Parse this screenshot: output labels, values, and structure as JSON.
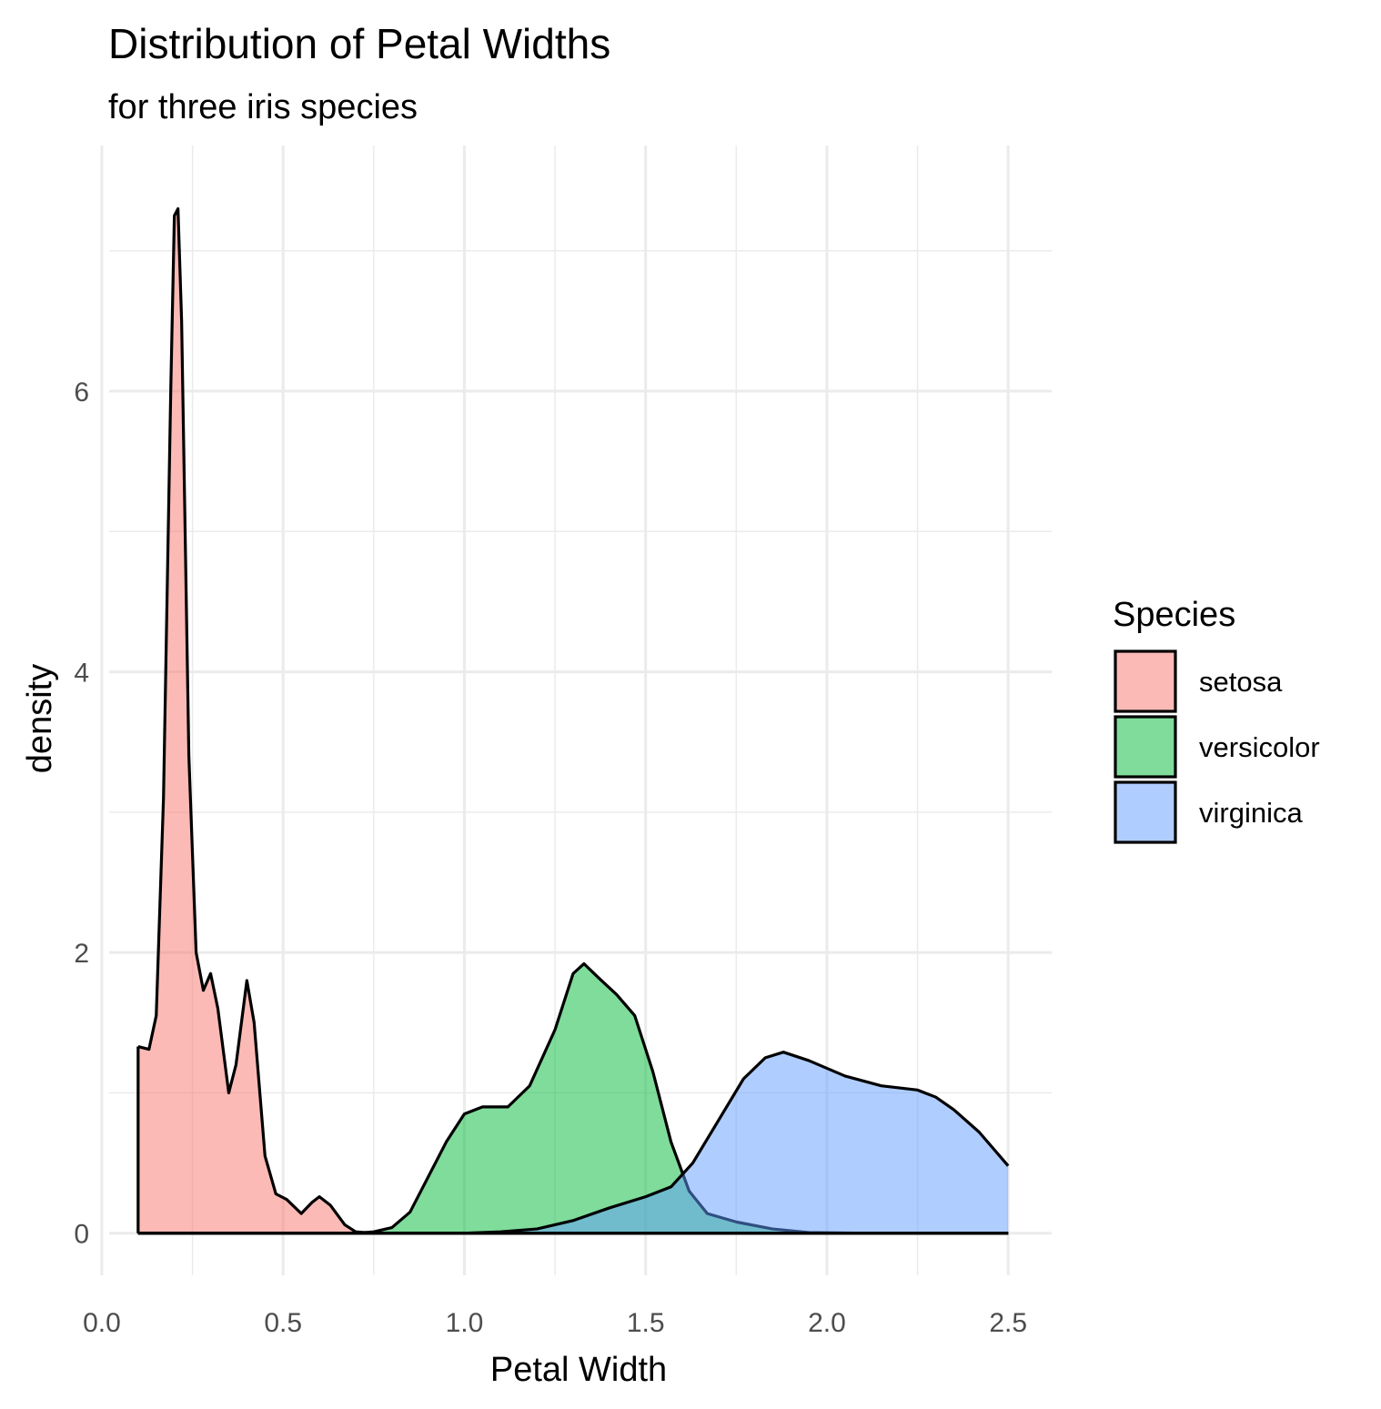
{
  "chart_data": {
    "type": "area",
    "title": "Distribution of Petal Widths",
    "subtitle": "for three iris species",
    "xlabel": "Petal Width",
    "ylabel": "density",
    "xlim": [
      -0.02,
      2.62
    ],
    "ylim": [
      -0.3,
      7.75
    ],
    "x_ticks": [
      0.0,
      0.5,
      1.0,
      1.5,
      2.0,
      2.5
    ],
    "x_tick_labels": [
      "0.0",
      "0.5",
      "1.0",
      "1.5",
      "2.0",
      "2.5"
    ],
    "x_minor_ticks": [
      0.25,
      0.75,
      1.25,
      1.75,
      2.25
    ],
    "y_ticks": [
      0,
      2,
      4,
      6
    ],
    "y_tick_labels": [
      "0",
      "2",
      "4",
      "6"
    ],
    "y_minor_ticks": [
      1,
      3,
      5,
      7
    ],
    "grid": true,
    "legend": {
      "title": "Species",
      "position": "right"
    },
    "series": [
      {
        "name": "setosa",
        "color": "#F8766D",
        "points": [
          [
            0.1,
            1.33
          ],
          [
            0.13,
            1.31
          ],
          [
            0.15,
            1.55
          ],
          [
            0.17,
            3.1
          ],
          [
            0.19,
            6.0
          ],
          [
            0.2,
            7.25
          ],
          [
            0.21,
            7.3
          ],
          [
            0.22,
            6.5
          ],
          [
            0.24,
            3.4
          ],
          [
            0.26,
            2.0
          ],
          [
            0.28,
            1.73
          ],
          [
            0.3,
            1.85
          ],
          [
            0.32,
            1.6
          ],
          [
            0.35,
            1.0
          ],
          [
            0.37,
            1.2
          ],
          [
            0.4,
            1.8
          ],
          [
            0.42,
            1.5
          ],
          [
            0.45,
            0.55
          ],
          [
            0.48,
            0.28
          ],
          [
            0.51,
            0.24
          ],
          [
            0.55,
            0.14
          ],
          [
            0.58,
            0.22
          ],
          [
            0.6,
            0.26
          ],
          [
            0.63,
            0.2
          ],
          [
            0.67,
            0.06
          ],
          [
            0.7,
            0.01
          ],
          [
            0.75,
            0.0
          ],
          [
            0.8,
            0.0
          ],
          [
            1.0,
            0.0
          ],
          [
            1.5,
            0.0
          ],
          [
            2.0,
            0.0
          ],
          [
            2.5,
            0.0
          ]
        ]
      },
      {
        "name": "versicolor",
        "color": "#00BA38",
        "points": [
          [
            0.1,
            0.0
          ],
          [
            0.5,
            0.0
          ],
          [
            0.7,
            0.0
          ],
          [
            0.75,
            0.01
          ],
          [
            0.8,
            0.04
          ],
          [
            0.85,
            0.15
          ],
          [
            0.9,
            0.4
          ],
          [
            0.95,
            0.65
          ],
          [
            1.0,
            0.85
          ],
          [
            1.05,
            0.9
          ],
          [
            1.12,
            0.9
          ],
          [
            1.18,
            1.05
          ],
          [
            1.25,
            1.45
          ],
          [
            1.3,
            1.85
          ],
          [
            1.33,
            1.92
          ],
          [
            1.37,
            1.82
          ],
          [
            1.42,
            1.7
          ],
          [
            1.47,
            1.55
          ],
          [
            1.52,
            1.15
          ],
          [
            1.57,
            0.65
          ],
          [
            1.62,
            0.3
          ],
          [
            1.67,
            0.14
          ],
          [
            1.75,
            0.08
          ],
          [
            1.85,
            0.03
          ],
          [
            1.95,
            0.005
          ],
          [
            2.1,
            0.0
          ],
          [
            2.5,
            0.0
          ]
        ]
      },
      {
        "name": "virginica",
        "color": "#619CFF",
        "points": [
          [
            0.1,
            0.0
          ],
          [
            0.8,
            0.0
          ],
          [
            1.0,
            0.0
          ],
          [
            1.1,
            0.01
          ],
          [
            1.2,
            0.03
          ],
          [
            1.3,
            0.09
          ],
          [
            1.4,
            0.18
          ],
          [
            1.5,
            0.26
          ],
          [
            1.57,
            0.33
          ],
          [
            1.63,
            0.5
          ],
          [
            1.7,
            0.8
          ],
          [
            1.77,
            1.1
          ],
          [
            1.83,
            1.25
          ],
          [
            1.88,
            1.29
          ],
          [
            1.95,
            1.23
          ],
          [
            2.05,
            1.12
          ],
          [
            2.15,
            1.05
          ],
          [
            2.25,
            1.02
          ],
          [
            2.3,
            0.97
          ],
          [
            2.35,
            0.88
          ],
          [
            2.42,
            0.72
          ],
          [
            2.5,
            0.48
          ]
        ]
      }
    ]
  }
}
